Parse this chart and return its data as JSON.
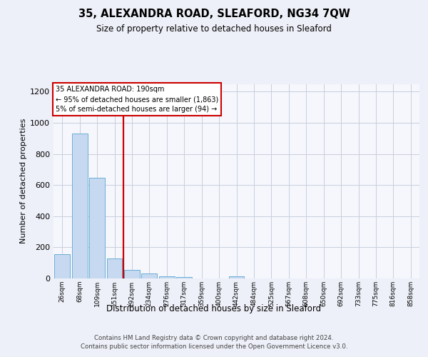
{
  "title": "35, ALEXANDRA ROAD, SLEAFORD, NG34 7QW",
  "subtitle": "Size of property relative to detached houses in Sleaford",
  "xlabel": "Distribution of detached houses by size in Sleaford",
  "ylabel": "Number of detached properties",
  "bar_labels": [
    "26sqm",
    "68sqm",
    "109sqm",
    "151sqm",
    "192sqm",
    "234sqm",
    "276sqm",
    "317sqm",
    "359sqm",
    "400sqm",
    "442sqm",
    "484sqm",
    "525sqm",
    "567sqm",
    "608sqm",
    "650sqm",
    "692sqm",
    "733sqm",
    "775sqm",
    "816sqm",
    "858sqm"
  ],
  "bar_values": [
    155,
    930,
    648,
    128,
    57,
    30,
    15,
    10,
    0,
    0,
    14,
    0,
    0,
    0,
    0,
    0,
    0,
    0,
    0,
    0,
    0
  ],
  "bar_color": "#c6d9f0",
  "bar_edge_color": "#6baed6",
  "vline_position": 3.5,
  "vline_color": "#cc0000",
  "annotation_line1": "35 ALEXANDRA ROAD: 190sqm",
  "annotation_line2": "← 95% of detached houses are smaller (1,863)",
  "annotation_line3": "5% of semi-detached houses are larger (94) →",
  "annotation_box_color": "#cc0000",
  "ylim": [
    0,
    1250
  ],
  "yticks": [
    0,
    200,
    400,
    600,
    800,
    1000,
    1200
  ],
  "footer_line1": "Contains HM Land Registry data © Crown copyright and database right 2024.",
  "footer_line2": "Contains public sector information licensed under the Open Government Licence v3.0.",
  "bg_color": "#edf0f8",
  "plot_bg_color": "#f5f7fc",
  "grid_color": "#c8cedd"
}
